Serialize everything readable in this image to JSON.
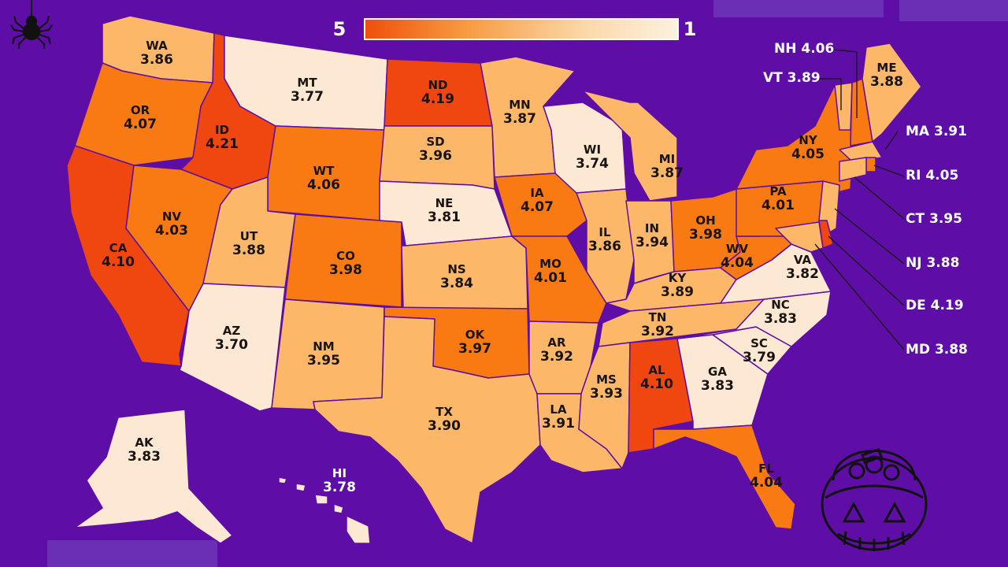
{
  "legend": {
    "high_label": "5",
    "low_label": "1",
    "gradient_colors": [
      "#f04e0c",
      "#f7963c",
      "#fbd8a8",
      "#fdf1e0"
    ]
  },
  "color_scale": {
    "highest": "#f0460f",
    "high": "#f97a12",
    "mid": "#fcb868",
    "low": "#fde9d3"
  },
  "background_color": "#5e0ea6",
  "icons": [
    "spider-icon",
    "pumpkin-bucket-icon"
  ],
  "states": [
    {
      "abbr": "WA",
      "score": "3.86",
      "tier": "mid"
    },
    {
      "abbr": "OR",
      "score": "4.07",
      "tier": "high"
    },
    {
      "abbr": "CA",
      "score": "4.10",
      "tier": "highest"
    },
    {
      "abbr": "ID",
      "score": "4.21",
      "tier": "highest"
    },
    {
      "abbr": "NV",
      "score": "4.03",
      "tier": "high"
    },
    {
      "abbr": "MT",
      "score": "3.77",
      "tier": "low"
    },
    {
      "abbr": "WT",
      "score": "4.06",
      "tier": "high"
    },
    {
      "abbr": "UT",
      "score": "3.88",
      "tier": "mid"
    },
    {
      "abbr": "AZ",
      "score": "3.70",
      "tier": "low"
    },
    {
      "abbr": "CO",
      "score": "3.98",
      "tier": "high"
    },
    {
      "abbr": "NM",
      "score": "3.95",
      "tier": "mid"
    },
    {
      "abbr": "ND",
      "score": "4.19",
      "tier": "highest"
    },
    {
      "abbr": "SD",
      "score": "3.96",
      "tier": "mid"
    },
    {
      "abbr": "NE",
      "score": "3.81",
      "tier": "low"
    },
    {
      "abbr": "NS",
      "score": "3.84",
      "tier": "mid"
    },
    {
      "abbr": "OK",
      "score": "3.97",
      "tier": "high"
    },
    {
      "abbr": "TX",
      "score": "3.90",
      "tier": "mid"
    },
    {
      "abbr": "MN",
      "score": "3.87",
      "tier": "mid"
    },
    {
      "abbr": "IA",
      "score": "4.07",
      "tier": "high"
    },
    {
      "abbr": "MO",
      "score": "4.01",
      "tier": "high"
    },
    {
      "abbr": "AR",
      "score": "3.92",
      "tier": "mid"
    },
    {
      "abbr": "LA",
      "score": "3.91",
      "tier": "mid"
    },
    {
      "abbr": "WI",
      "score": "3.74",
      "tier": "low"
    },
    {
      "abbr": "IL",
      "score": "3.86",
      "tier": "mid"
    },
    {
      "abbr": "MI",
      "score": "3.87",
      "tier": "mid"
    },
    {
      "abbr": "IN",
      "score": "3.94",
      "tier": "mid"
    },
    {
      "abbr": "OH",
      "score": "3.98",
      "tier": "high"
    },
    {
      "abbr": "KY",
      "score": "3.89",
      "tier": "mid"
    },
    {
      "abbr": "TN",
      "score": "3.92",
      "tier": "mid"
    },
    {
      "abbr": "MS",
      "score": "3.93",
      "tier": "mid"
    },
    {
      "abbr": "AL",
      "score": "4.10",
      "tier": "highest"
    },
    {
      "abbr": "GA",
      "score": "3.83",
      "tier": "low"
    },
    {
      "abbr": "FL",
      "score": "4.04",
      "tier": "high"
    },
    {
      "abbr": "SC",
      "score": "3.79",
      "tier": "low"
    },
    {
      "abbr": "NC",
      "score": "3.83",
      "tier": "low"
    },
    {
      "abbr": "VA",
      "score": "3.82",
      "tier": "low"
    },
    {
      "abbr": "WV",
      "score": "4.04",
      "tier": "high"
    },
    {
      "abbr": "PA",
      "score": "4.01",
      "tier": "high"
    },
    {
      "abbr": "NY",
      "score": "4.05",
      "tier": "high"
    },
    {
      "abbr": "ME",
      "score": "3.88",
      "tier": "mid"
    },
    {
      "abbr": "AK",
      "score": "3.83",
      "tier": "low"
    },
    {
      "abbr": "HI",
      "score": "3.78",
      "tier": "low"
    }
  ],
  "callouts": [
    {
      "label": "NH 4.06",
      "tier": "high"
    },
    {
      "label": "VT 3.89",
      "tier": "mid"
    },
    {
      "label": "MA 3.91",
      "tier": "mid"
    },
    {
      "label": "RI 4.05",
      "tier": "high"
    },
    {
      "label": "CT 3.95",
      "tier": "mid"
    },
    {
      "label": "NJ 3.88",
      "tier": "mid"
    },
    {
      "label": "DE 4.19",
      "tier": "highest"
    },
    {
      "label": "MD 3.88",
      "tier": "mid"
    }
  ]
}
